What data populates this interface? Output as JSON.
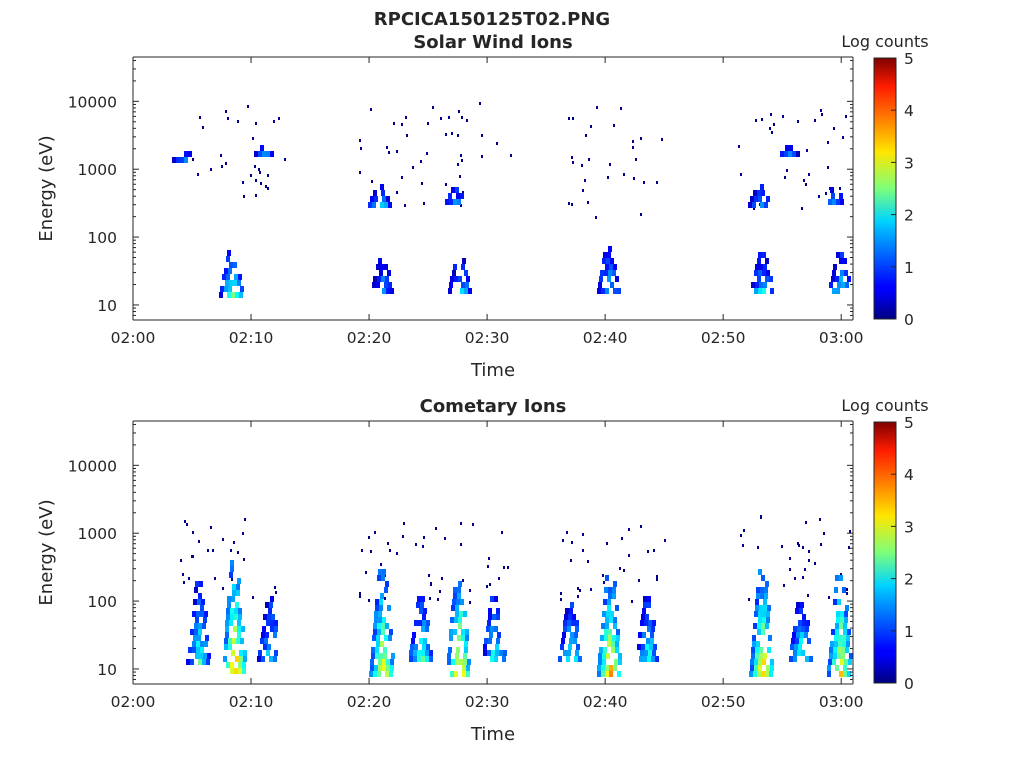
{
  "figure_title": "RPCICA150125T02.PNG",
  "chart_data": [
    {
      "type": "heatmap",
      "title": "Solar Wind Ions",
      "xlabel": "Time",
      "ylabel": "Energy (eV)",
      "y_scale": "log",
      "ylim": [
        6,
        45000
      ],
      "xlim": [
        "02:00",
        "03:01"
      ],
      "x_ticks": [
        "02:00",
        "02:10",
        "02:20",
        "02:30",
        "02:40",
        "02:50",
        "03:00"
      ],
      "y_ticks": [
        "10",
        "100",
        "1000",
        "10000"
      ],
      "colorbar": {
        "label": "Log counts",
        "range": [
          0,
          5
        ],
        "ticks": [
          "0",
          "1",
          "2",
          "3",
          "4",
          "5"
        ],
        "colormap": "jet"
      },
      "grid": false,
      "bursts": [
        {
          "t": 8.3,
          "e_low": 15,
          "e_high": 80,
          "peak": 2.3
        },
        {
          "t": 21.0,
          "e_low": 15,
          "e_high": 50,
          "peak": 1.6
        },
        {
          "t": 27.6,
          "e_low": 15,
          "e_high": 60,
          "peak": 1.8
        },
        {
          "t": 40.2,
          "e_low": 15,
          "e_high": 75,
          "peak": 1.8
        },
        {
          "t": 53.2,
          "e_low": 15,
          "e_high": 60,
          "peak": 2.0
        },
        {
          "t": 59.8,
          "e_low": 15,
          "e_high": 60,
          "peak": 2.0
        },
        {
          "t": 20.8,
          "e_low": 300,
          "e_high": 600,
          "peak": 1.9
        },
        {
          "t": 27.2,
          "e_low": 300,
          "e_high": 550,
          "peak": 1.8
        },
        {
          "t": 53.0,
          "e_low": 300,
          "e_high": 600,
          "peak": 1.5
        },
        {
          "t": 59.3,
          "e_low": 300,
          "e_high": 550,
          "peak": 1.6
        },
        {
          "t": 11.0,
          "e_low": 1700,
          "e_high": 2300,
          "peak": 1.6
        },
        {
          "t": 4.3,
          "e_low": 1500,
          "e_high": 2300,
          "peak": 1.4
        },
        {
          "t": 55.5,
          "e_low": 1600,
          "e_high": 2300,
          "peak": 1.6
        }
      ],
      "scatter_ranges": [
        {
          "t0": 4,
          "t1": 13,
          "e0": 300,
          "e1": 9000
        },
        {
          "t0": 19,
          "t1": 32,
          "e0": 300,
          "e1": 10000
        },
        {
          "t0": 36,
          "t1": 45,
          "e0": 200,
          "e1": 9000
        },
        {
          "t0": 51,
          "t1": 61,
          "e0": 200,
          "e1": 8000
        }
      ]
    },
    {
      "type": "heatmap",
      "title": "Cometary Ions",
      "xlabel": "Time",
      "ylabel": "Energy (eV)",
      "y_scale": "log",
      "ylim": [
        6,
        45000
      ],
      "xlim": [
        "02:00",
        "03:01"
      ],
      "x_ticks": [
        "02:00",
        "02:10",
        "02:20",
        "02:30",
        "02:40",
        "02:50",
        "03:00"
      ],
      "y_ticks": [
        "10",
        "100",
        "1000",
        "10000"
      ],
      "colorbar": {
        "label": "Log counts",
        "range": [
          0,
          5
        ],
        "ticks": [
          "0",
          "1",
          "2",
          "3",
          "4",
          "5"
        ],
        "colormap": "jet"
      },
      "grid": false,
      "bursts": [
        {
          "t": 5.5,
          "e_low": 13,
          "e_high": 200,
          "peak": 2.2
        },
        {
          "t": 8.5,
          "e_low": 9,
          "e_high": 400,
          "peak": 3.7
        },
        {
          "t": 11.5,
          "e_low": 13,
          "e_high": 120,
          "peak": 2.0
        },
        {
          "t": 21.0,
          "e_low": 9,
          "e_high": 300,
          "peak": 3.4
        },
        {
          "t": 24.3,
          "e_low": 13,
          "e_high": 120,
          "peak": 2.4
        },
        {
          "t": 27.5,
          "e_low": 9,
          "e_high": 300,
          "peak": 3.6
        },
        {
          "t": 30.5,
          "e_low": 13,
          "e_high": 120,
          "peak": 2.2
        },
        {
          "t": 37.0,
          "e_low": 13,
          "e_high": 120,
          "peak": 2.2
        },
        {
          "t": 40.3,
          "e_low": 9,
          "e_high": 300,
          "peak": 3.6
        },
        {
          "t": 43.5,
          "e_low": 13,
          "e_high": 120,
          "peak": 2.2
        },
        {
          "t": 53.2,
          "e_low": 9,
          "e_high": 300,
          "peak": 3.6
        },
        {
          "t": 56.5,
          "e_low": 13,
          "e_high": 120,
          "peak": 2.3
        },
        {
          "t": 59.8,
          "e_low": 9,
          "e_high": 300,
          "peak": 3.4
        }
      ],
      "scatter_ranges": [
        {
          "t0": 4,
          "t1": 13,
          "e0": 100,
          "e1": 2000
        },
        {
          "t0": 19,
          "t1": 32,
          "e0": 100,
          "e1": 2000
        },
        {
          "t0": 36,
          "t1": 45,
          "e0": 100,
          "e1": 1500
        },
        {
          "t0": 51,
          "t1": 61,
          "e0": 100,
          "e1": 2000
        }
      ]
    }
  ]
}
